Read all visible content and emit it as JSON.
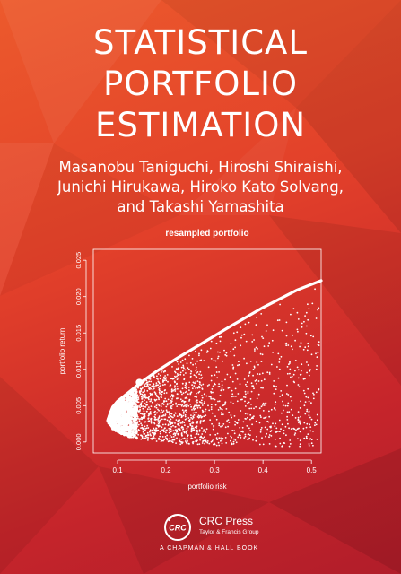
{
  "cover": {
    "title_lines": [
      "STATISTICAL",
      "PORTFOLIO",
      "ESTIMATION"
    ],
    "author_lines": [
      "Masanobu Taniguchi, Hiroshi Shiraishi,",
      "Junichi Hirukawa, Hiroko Kato Solvang,",
      "and Takashi Yamashita"
    ]
  },
  "publisher": {
    "logo_text": "CRC",
    "name": "CRC Press",
    "subtitle": "Taylor & Francis Group",
    "imprint": "A CHAPMAN & HALL BOOK"
  },
  "colors": {
    "background_light": "#ec5a2c",
    "background_dark": "#b11d2a",
    "foreground": "#ffffff"
  },
  "chart_data": {
    "type": "scatter",
    "title": "resampled portfolio",
    "xlabel": "portfolio risk",
    "ylabel": "portfolio return",
    "xlim": [
      0.05,
      0.52
    ],
    "ylim": [
      -0.0015,
      0.0265
    ],
    "x_ticks": [
      "0.1",
      "0.2",
      "0.3",
      "0.4",
      "0.5"
    ],
    "x_tick_values": [
      0.1,
      0.2,
      0.3,
      0.4,
      0.5
    ],
    "y_ticks": [
      "0.000",
      "0.005",
      "0.010",
      "0.015",
      "0.020",
      "0.025"
    ],
    "y_tick_values": [
      0.0,
      0.005,
      0.01,
      0.015,
      0.02,
      0.025
    ],
    "frontier": {
      "x": [
        0.08,
        0.085,
        0.09,
        0.1,
        0.115,
        0.13,
        0.15,
        0.18,
        0.22,
        0.27,
        0.33,
        0.4,
        0.47,
        0.52
      ],
      "y": [
        0.003,
        0.004,
        0.0048,
        0.0056,
        0.0064,
        0.0072,
        0.0083,
        0.0097,
        0.0114,
        0.0134,
        0.0158,
        0.0185,
        0.0209,
        0.0222
      ]
    },
    "lower_edge": {
      "x": [
        0.08,
        0.09,
        0.11,
        0.14,
        0.18,
        0.23,
        0.3,
        0.4,
        0.52
      ],
      "y": [
        0.0028,
        0.0018,
        0.001,
        0.0004,
        0.0001,
        -0.0003,
        -0.0005,
        -0.0006,
        -0.0007
      ]
    },
    "marked_point": {
      "x": 0.145,
      "y": 0.0082
    },
    "resampled_point_count": 2400,
    "grid": false
  }
}
